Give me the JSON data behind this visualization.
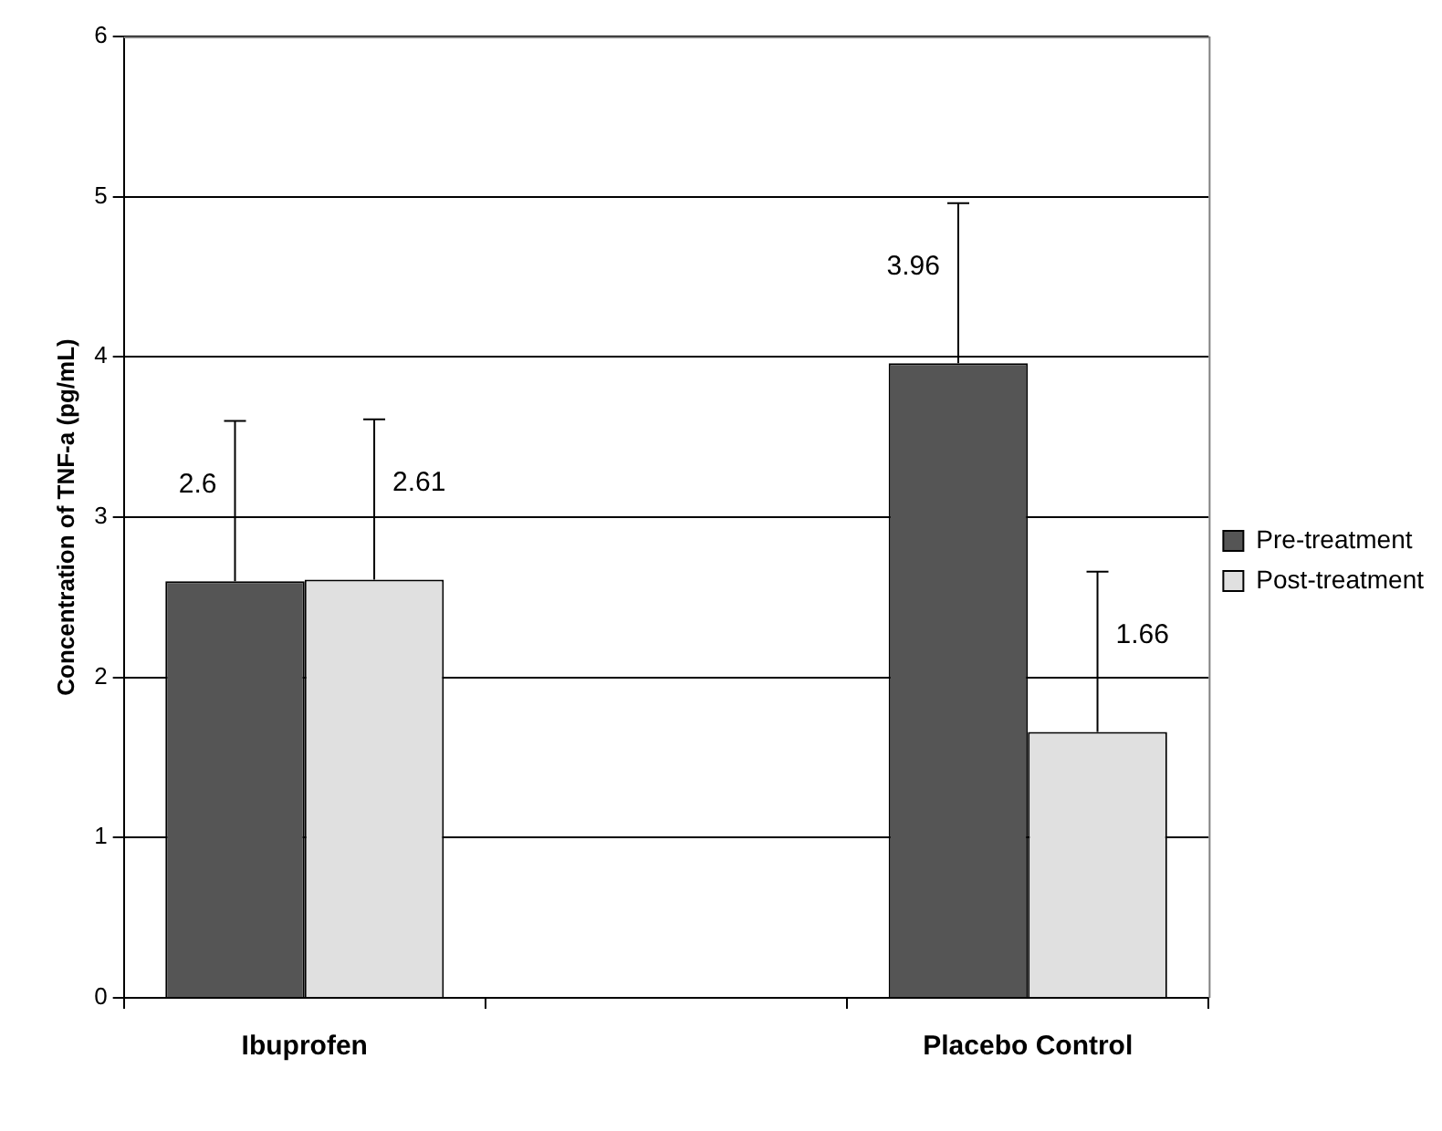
{
  "chart_data": {
    "type": "bar",
    "ylabel": "Concentration of TNF-a (pg/mL)",
    "categories": [
      "Ibuprofen",
      null,
      "Placebo Control"
    ],
    "series": [
      {
        "name": "Pre-treatment",
        "color": "#555555",
        "values": [
          2.6,
          null,
          3.96
        ],
        "errors": [
          [
            2.6,
            3.6
          ],
          null,
          [
            3.96,
            4.96
          ]
        ]
      },
      {
        "name": "Post-treatment",
        "color": "#e0e0e0",
        "values": [
          2.61,
          null,
          1.66
        ],
        "errors": [
          [
            2.61,
            3.61
          ],
          null,
          [
            1.66,
            2.66
          ]
        ]
      }
    ],
    "ylim": [
      0,
      6
    ],
    "yticks": [
      0,
      1,
      2,
      3,
      4,
      5,
      6
    ],
    "grid": "y",
    "legend": "right",
    "data_labels": true
  }
}
